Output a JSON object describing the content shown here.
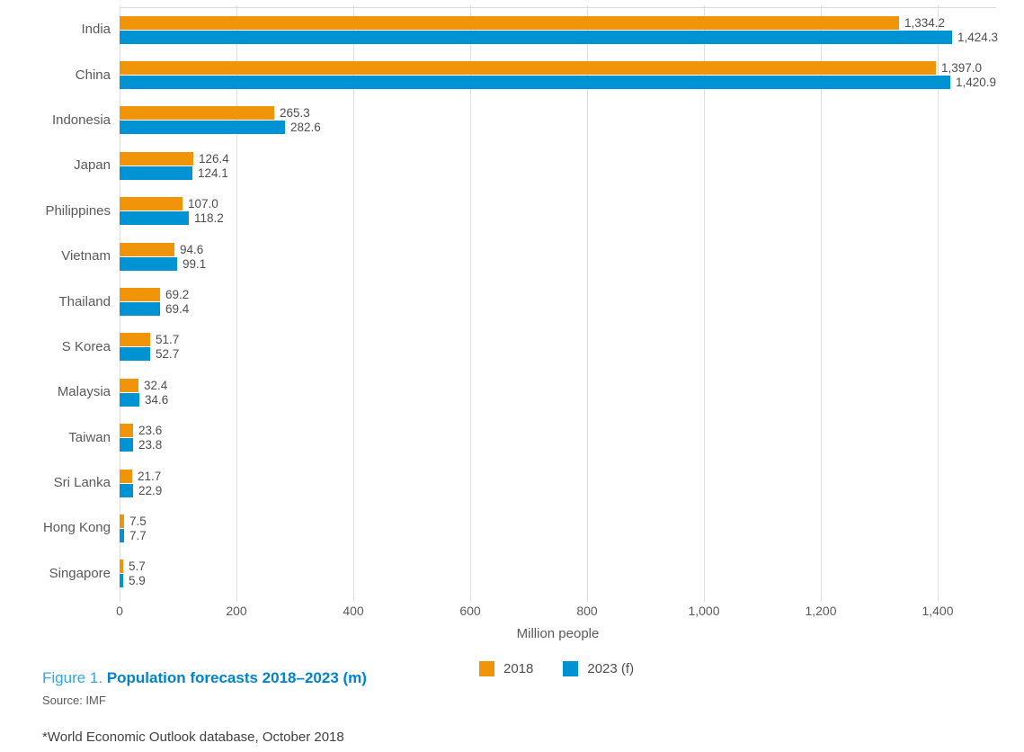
{
  "colors": {
    "series_2018": "#F0940A",
    "series_2023": "#0093D3",
    "caption_prefix_blue": "#2FA8E0",
    "caption_title_blue": "#0083CB",
    "gridline": "#DEDEDE"
  },
  "chart_data": {
    "type": "bar",
    "orientation": "horizontal",
    "title": "Figure 1. Population forecasts 2018–2023 (m)",
    "xlabel": "Million people",
    "xlim": [
      0,
      1500
    ],
    "grid": true,
    "legend_position": "bottom-center",
    "categories": [
      "India",
      "China",
      "Indonesia",
      "Japan",
      "Philippines",
      "Vietnam",
      "Thailand",
      "S Korea",
      "Malaysia",
      "Taiwan",
      "Sri Lanka",
      "Hong Kong",
      "Singapore"
    ],
    "series": [
      {
        "name": "2018",
        "color": "#F0940A",
        "values": [
          1334.2,
          1397.0,
          265.3,
          126.4,
          107.0,
          94.6,
          69.2,
          51.7,
          32.4,
          23.6,
          21.7,
          7.5,
          5.7
        ],
        "labels": [
          "1,334.2",
          "1,397.0",
          "265.3",
          "126.4",
          "107.0",
          "94.6",
          "69.2",
          "51.7",
          "32.4",
          "23.6",
          "21.7",
          "7.5",
          "5.7"
        ]
      },
      {
        "name": "2023 (f)",
        "color": "#0093D3",
        "values": [
          1424.3,
          1420.9,
          282.6,
          124.1,
          118.2,
          99.1,
          69.4,
          52.7,
          34.6,
          23.8,
          22.9,
          7.7,
          5.9
        ],
        "labels": [
          "1,424.3",
          "1,420.9",
          "282.6",
          "124.1",
          "118.2",
          "99.1",
          "69.4",
          "52.7",
          "34.6",
          "23.8",
          "22.9",
          "7.7",
          "5.9"
        ]
      }
    ],
    "x_ticks": [
      {
        "value": 0,
        "label": "0"
      },
      {
        "value": 200,
        "label": "200"
      },
      {
        "value": 400,
        "label": "400"
      },
      {
        "value": 600,
        "label": "600"
      },
      {
        "value": 800,
        "label": "800"
      },
      {
        "value": 1000,
        "label": "1,000"
      },
      {
        "value": 1200,
        "label": "1,200"
      },
      {
        "value": 1400,
        "label": "1,400"
      }
    ]
  },
  "caption": {
    "prefix": "Figure 1.",
    "title": "Population forecasts 2018–2023 (m)"
  },
  "source": "Source: IMF",
  "footnote": "*World Economic Outlook database, October 2018"
}
